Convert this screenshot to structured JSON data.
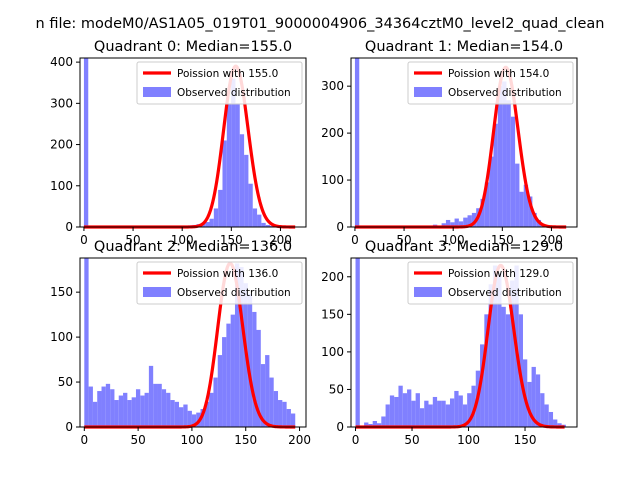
{
  "figure": {
    "suptitle": "n file: modeM0/AS1A05_019T01_9000004906_34364cztM0_level2_quad_clean"
  },
  "chart_data": [
    {
      "type": "bar",
      "title": "Quadrant 0: Median=155.0",
      "xlim": [
        -4,
        226
      ],
      "ylim": [
        0,
        410
      ],
      "xticks": [
        0,
        50,
        100,
        150,
        200
      ],
      "yticks": [
        0,
        100,
        200,
        300,
        400
      ],
      "legend": {
        "placement": "top-right",
        "entries": [
          "Poission with 155.0",
          "Observed distribution"
        ]
      },
      "histogram": {
        "name": "Observed distribution",
        "color": "#8080ff",
        "bin_width": 4.4,
        "bins": [
          {
            "x0": 0,
            "count": 410
          },
          {
            "x0": 97,
            "count": 3
          },
          {
            "x0": 101.4,
            "count": 2
          },
          {
            "x0": 105.8,
            "count": 4
          },
          {
            "x0": 110.2,
            "count": 5
          },
          {
            "x0": 114.6,
            "count": 7
          },
          {
            "x0": 119,
            "count": 9
          },
          {
            "x0": 123.4,
            "count": 12
          },
          {
            "x0": 127.8,
            "count": 20
          },
          {
            "x0": 132.2,
            "count": 45
          },
          {
            "x0": 136.6,
            "count": 90
          },
          {
            "x0": 141,
            "count": 210
          },
          {
            "x0": 145.4,
            "count": 300
          },
          {
            "x0": 149.8,
            "count": 360
          },
          {
            "x0": 154.2,
            "count": 300
          },
          {
            "x0": 158.6,
            "count": 225
          },
          {
            "x0": 163,
            "count": 175
          },
          {
            "x0": 167.4,
            "count": 105
          },
          {
            "x0": 171.8,
            "count": 45
          },
          {
            "x0": 176.2,
            "count": 30
          },
          {
            "x0": 180.6,
            "count": 10
          },
          {
            "x0": 185,
            "count": 5
          },
          {
            "x0": 189.4,
            "count": 3
          },
          {
            "x0": 193.8,
            "count": 2
          },
          {
            "x0": 198.2,
            "count": 1
          },
          {
            "x0": 202.6,
            "count": 1
          },
          {
            "x0": 207,
            "count": 1
          },
          {
            "x0": 211.4,
            "count": 1
          }
        ]
      },
      "fit": {
        "name": "Poission with 155.0",
        "color": "#ff0000",
        "mean": 155.0,
        "peak": 390,
        "x_range": [
          0,
          215
        ]
      }
    },
    {
      "type": "bar",
      "title": "Quadrant 1: Median=154.0",
      "xlim": [
        -4,
        226
      ],
      "ylim": [
        0,
        360
      ],
      "xticks": [
        0,
        50,
        100,
        150,
        200
      ],
      "yticks": [
        0,
        100,
        200,
        300
      ],
      "legend": {
        "placement": "top-right",
        "entries": [
          "Poission with 154.0",
          "Observed distribution"
        ]
      },
      "histogram": {
        "name": "Observed distribution",
        "color": "#8080ff",
        "bin_width": 4.4,
        "bins": [
          {
            "x0": 0,
            "count": 360
          },
          {
            "x0": 75,
            "count": 2
          },
          {
            "x0": 79.4,
            "count": 5
          },
          {
            "x0": 83.8,
            "count": 3
          },
          {
            "x0": 88.2,
            "count": 8
          },
          {
            "x0": 92.6,
            "count": 15
          },
          {
            "x0": 97,
            "count": 10
          },
          {
            "x0": 101.4,
            "count": 18
          },
          {
            "x0": 105.8,
            "count": 12
          },
          {
            "x0": 110.2,
            "count": 20
          },
          {
            "x0": 114.6,
            "count": 25
          },
          {
            "x0": 119,
            "count": 30
          },
          {
            "x0": 123.4,
            "count": 40
          },
          {
            "x0": 127.8,
            "count": 60
          },
          {
            "x0": 132.2,
            "count": 95
          },
          {
            "x0": 136.6,
            "count": 150
          },
          {
            "x0": 141,
            "count": 220
          },
          {
            "x0": 145.4,
            "count": 300
          },
          {
            "x0": 149.8,
            "count": 310
          },
          {
            "x0": 154.2,
            "count": 270
          },
          {
            "x0": 158.6,
            "count": 235
          },
          {
            "x0": 163,
            "count": 135
          },
          {
            "x0": 167.4,
            "count": 75
          },
          {
            "x0": 171.8,
            "count": 90
          },
          {
            "x0": 176.2,
            "count": 65
          },
          {
            "x0": 180.6,
            "count": 30
          },
          {
            "x0": 185,
            "count": 15
          },
          {
            "x0": 189.4,
            "count": 5
          },
          {
            "x0": 193.8,
            "count": 3
          },
          {
            "x0": 198.2,
            "count": 2
          },
          {
            "x0": 202.6,
            "count": 1
          },
          {
            "x0": 207,
            "count": 1
          },
          {
            "x0": 211.4,
            "count": 1
          }
        ]
      },
      "fit": {
        "name": "Poission with 154.0",
        "color": "#ff0000",
        "mean": 154.0,
        "peak": 340,
        "x_range": [
          0,
          215
        ]
      }
    },
    {
      "type": "bar",
      "title": "Quadrant 2: Median=136.0",
      "xlim": [
        -4,
        206
      ],
      "ylim": [
        0,
        188
      ],
      "xticks": [
        0,
        50,
        100,
        150,
        200
      ],
      "yticks": [
        0,
        50,
        100,
        150
      ],
      "legend": {
        "placement": "top-right",
        "entries": [
          "Poission with 136.0",
          "Observed distribution"
        ]
      },
      "histogram": {
        "name": "Observed distribution",
        "color": "#8080ff",
        "bin_width": 4.0,
        "bins": [
          {
            "x0": 0,
            "count": 188
          },
          {
            "x0": 4,
            "count": 45
          },
          {
            "x0": 8,
            "count": 28
          },
          {
            "x0": 12,
            "count": 40
          },
          {
            "x0": 16,
            "count": 45
          },
          {
            "x0": 20,
            "count": 48
          },
          {
            "x0": 24,
            "count": 42
          },
          {
            "x0": 28,
            "count": 30
          },
          {
            "x0": 32,
            "count": 35
          },
          {
            "x0": 36,
            "count": 38
          },
          {
            "x0": 40,
            "count": 30
          },
          {
            "x0": 44,
            "count": 33
          },
          {
            "x0": 48,
            "count": 42
          },
          {
            "x0": 52,
            "count": 35
          },
          {
            "x0": 56,
            "count": 38
          },
          {
            "x0": 60,
            "count": 68
          },
          {
            "x0": 64,
            "count": 48
          },
          {
            "x0": 68,
            "count": 48
          },
          {
            "x0": 72,
            "count": 42
          },
          {
            "x0": 76,
            "count": 38
          },
          {
            "x0": 80,
            "count": 30
          },
          {
            "x0": 84,
            "count": 28
          },
          {
            "x0": 88,
            "count": 22
          },
          {
            "x0": 92,
            "count": 25
          },
          {
            "x0": 96,
            "count": 18
          },
          {
            "x0": 100,
            "count": 14
          },
          {
            "x0": 104,
            "count": 16
          },
          {
            "x0": 108,
            "count": 20
          },
          {
            "x0": 112,
            "count": 28
          },
          {
            "x0": 116,
            "count": 38
          },
          {
            "x0": 120,
            "count": 55
          },
          {
            "x0": 124,
            "count": 80
          },
          {
            "x0": 128,
            "count": 100
          },
          {
            "x0": 132,
            "count": 115
          },
          {
            "x0": 136,
            "count": 125
          },
          {
            "x0": 140,
            "count": 182
          },
          {
            "x0": 144,
            "count": 178
          },
          {
            "x0": 148,
            "count": 160
          },
          {
            "x0": 152,
            "count": 148
          },
          {
            "x0": 156,
            "count": 128
          },
          {
            "x0": 160,
            "count": 108
          },
          {
            "x0": 164,
            "count": 70
          },
          {
            "x0": 168,
            "count": 80
          },
          {
            "x0": 172,
            "count": 55
          },
          {
            "x0": 176,
            "count": 40
          },
          {
            "x0": 180,
            "count": 30
          },
          {
            "x0": 184,
            "count": 28
          },
          {
            "x0": 188,
            "count": 20
          },
          {
            "x0": 192,
            "count": 15
          }
        ]
      },
      "fit": {
        "name": "Poission with 136.0",
        "color": "#ff0000",
        "mean": 136.0,
        "peak": 182,
        "x_range": [
          0,
          196
        ]
      }
    },
    {
      "type": "bar",
      "title": "Quadrant 3: Median=129.0",
      "xlim": [
        -4,
        196
      ],
      "ylim": [
        0,
        225
      ],
      "xticks": [
        0,
        50,
        100,
        150
      ],
      "yticks": [
        0,
        50,
        100,
        150,
        200
      ],
      "legend": {
        "placement": "top-right",
        "entries": [
          "Poission with 129.0",
          "Observed distribution"
        ]
      },
      "histogram": {
        "name": "Observed distribution",
        "color": "#8080ff",
        "bin_width": 3.8,
        "bins": [
          {
            "x0": 0,
            "count": 225
          },
          {
            "x0": 3.8,
            "count": 2
          },
          {
            "x0": 7.6,
            "count": 6
          },
          {
            "x0": 11.4,
            "count": 4
          },
          {
            "x0": 15.2,
            "count": 8
          },
          {
            "x0": 19,
            "count": 5
          },
          {
            "x0": 22.8,
            "count": 14
          },
          {
            "x0": 26.6,
            "count": 30
          },
          {
            "x0": 30.4,
            "count": 42
          },
          {
            "x0": 34.2,
            "count": 40
          },
          {
            "x0": 38,
            "count": 55
          },
          {
            "x0": 41.8,
            "count": 45
          },
          {
            "x0": 45.6,
            "count": 50
          },
          {
            "x0": 49.4,
            "count": 35
          },
          {
            "x0": 53.2,
            "count": 45
          },
          {
            "x0": 57,
            "count": 25
          },
          {
            "x0": 60.8,
            "count": 35
          },
          {
            "x0": 64.6,
            "count": 30
          },
          {
            "x0": 68.4,
            "count": 40
          },
          {
            "x0": 72.2,
            "count": 35
          },
          {
            "x0": 76,
            "count": 35
          },
          {
            "x0": 79.8,
            "count": 30
          },
          {
            "x0": 83.6,
            "count": 38
          },
          {
            "x0": 87.4,
            "count": 48
          },
          {
            "x0": 91.2,
            "count": 42
          },
          {
            "x0": 95,
            "count": 30
          },
          {
            "x0": 98.8,
            "count": 45
          },
          {
            "x0": 102.6,
            "count": 55
          },
          {
            "x0": 106.4,
            "count": 75
          },
          {
            "x0": 110.2,
            "count": 110
          },
          {
            "x0": 114,
            "count": 150
          },
          {
            "x0": 117.8,
            "count": 190
          },
          {
            "x0": 121.6,
            "count": 215
          },
          {
            "x0": 125.4,
            "count": 205
          },
          {
            "x0": 129.2,
            "count": 160
          },
          {
            "x0": 133,
            "count": 150
          },
          {
            "x0": 136.8,
            "count": 195
          },
          {
            "x0": 140.6,
            "count": 215
          },
          {
            "x0": 144.4,
            "count": 150
          },
          {
            "x0": 148.2,
            "count": 90
          },
          {
            "x0": 152,
            "count": 60
          },
          {
            "x0": 155.8,
            "count": 80
          },
          {
            "x0": 159.6,
            "count": 70
          },
          {
            "x0": 163.4,
            "count": 45
          },
          {
            "x0": 167.2,
            "count": 30
          },
          {
            "x0": 171,
            "count": 20
          },
          {
            "x0": 174.8,
            "count": 10
          },
          {
            "x0": 178.6,
            "count": 5
          },
          {
            "x0": 182.4,
            "count": 3
          }
        ]
      },
      "fit": {
        "name": "Poission with 129.0",
        "color": "#ff0000",
        "mean": 129.0,
        "peak": 215,
        "x_range": [
          0,
          185
        ]
      }
    }
  ]
}
